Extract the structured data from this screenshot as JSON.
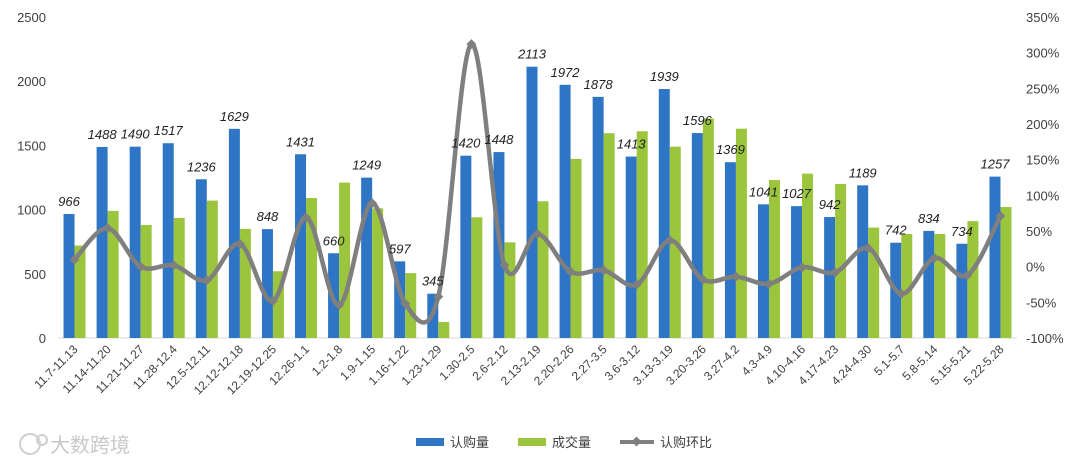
{
  "chart_data": {
    "type": "bar",
    "categories": [
      "11.7-11.13",
      "11.14-11.20",
      "11.21-11.27",
      "11.28-12.4",
      "12.5-12.11",
      "12.12-12.18",
      "12.19-12.25",
      "12.26-1.1",
      "1.2-1.8",
      "1.9-1.15",
      "1.16-1.22",
      "1.23-1.29",
      "1.30-2.5",
      "2.6-2.12",
      "2.13-2.19",
      "2.20-2.26",
      "2.27-3.5",
      "3.6-3.12",
      "3.13-3.19",
      "3.20-3.26",
      "3.27-4.2",
      "4.3-4.9",
      "4.10-4.16",
      "4.17-4.23",
      "4.24-4.30",
      "5.1-5.7",
      "5.8-5.14",
      "5.15-5.21",
      "5.22-5.28"
    ],
    "series": [
      {
        "name": "认购量",
        "type": "bar",
        "axis": "left",
        "color": "#2e75c5",
        "values": [
          966,
          1488,
          1490,
          1517,
          1236,
          1629,
          848,
          1431,
          660,
          1249,
          597,
          345,
          1420,
          1448,
          2113,
          1972,
          1878,
          1413,
          1939,
          1596,
          1369,
          1041,
          1027,
          942,
          1189,
          742,
          834,
          734,
          1257
        ],
        "labeled": true
      },
      {
        "name": "成交量",
        "type": "bar",
        "axis": "left",
        "color": "#9bc53d",
        "values": [
          720,
          990,
          880,
          935,
          1070,
          850,
          520,
          1090,
          1210,
          1010,
          505,
          125,
          940,
          745,
          1065,
          1395,
          1595,
          1610,
          1490,
          1710,
          1630,
          1230,
          1280,
          1200,
          860,
          810,
          810,
          910,
          1020
        ]
      },
      {
        "name": "认购环比",
        "type": "line",
        "axis": "right",
        "color": "#7f7f7f",
        "values": [
          10,
          54,
          0,
          2,
          -19,
          32,
          -48,
          69,
          -54,
          89,
          -52,
          -42,
          312,
          2,
          46,
          -7,
          -5,
          -25,
          37,
          -18,
          -14,
          -24,
          -1,
          -8,
          26,
          -38,
          12,
          -12,
          71
        ]
      }
    ],
    "ylim_left": [
      0,
      2500
    ],
    "yticks_left": [
      "0",
      "500",
      "1000",
      "1500",
      "2000",
      "2500"
    ],
    "ylim_right": [
      -100,
      350
    ],
    "yticks_right": [
      "-100%",
      "-50%",
      "0%",
      "50%",
      "100%",
      "150%",
      "200%",
      "250%",
      "300%",
      "350%"
    ],
    "legend_position": "bottom",
    "grid": false
  },
  "watermark": "大数跨境"
}
